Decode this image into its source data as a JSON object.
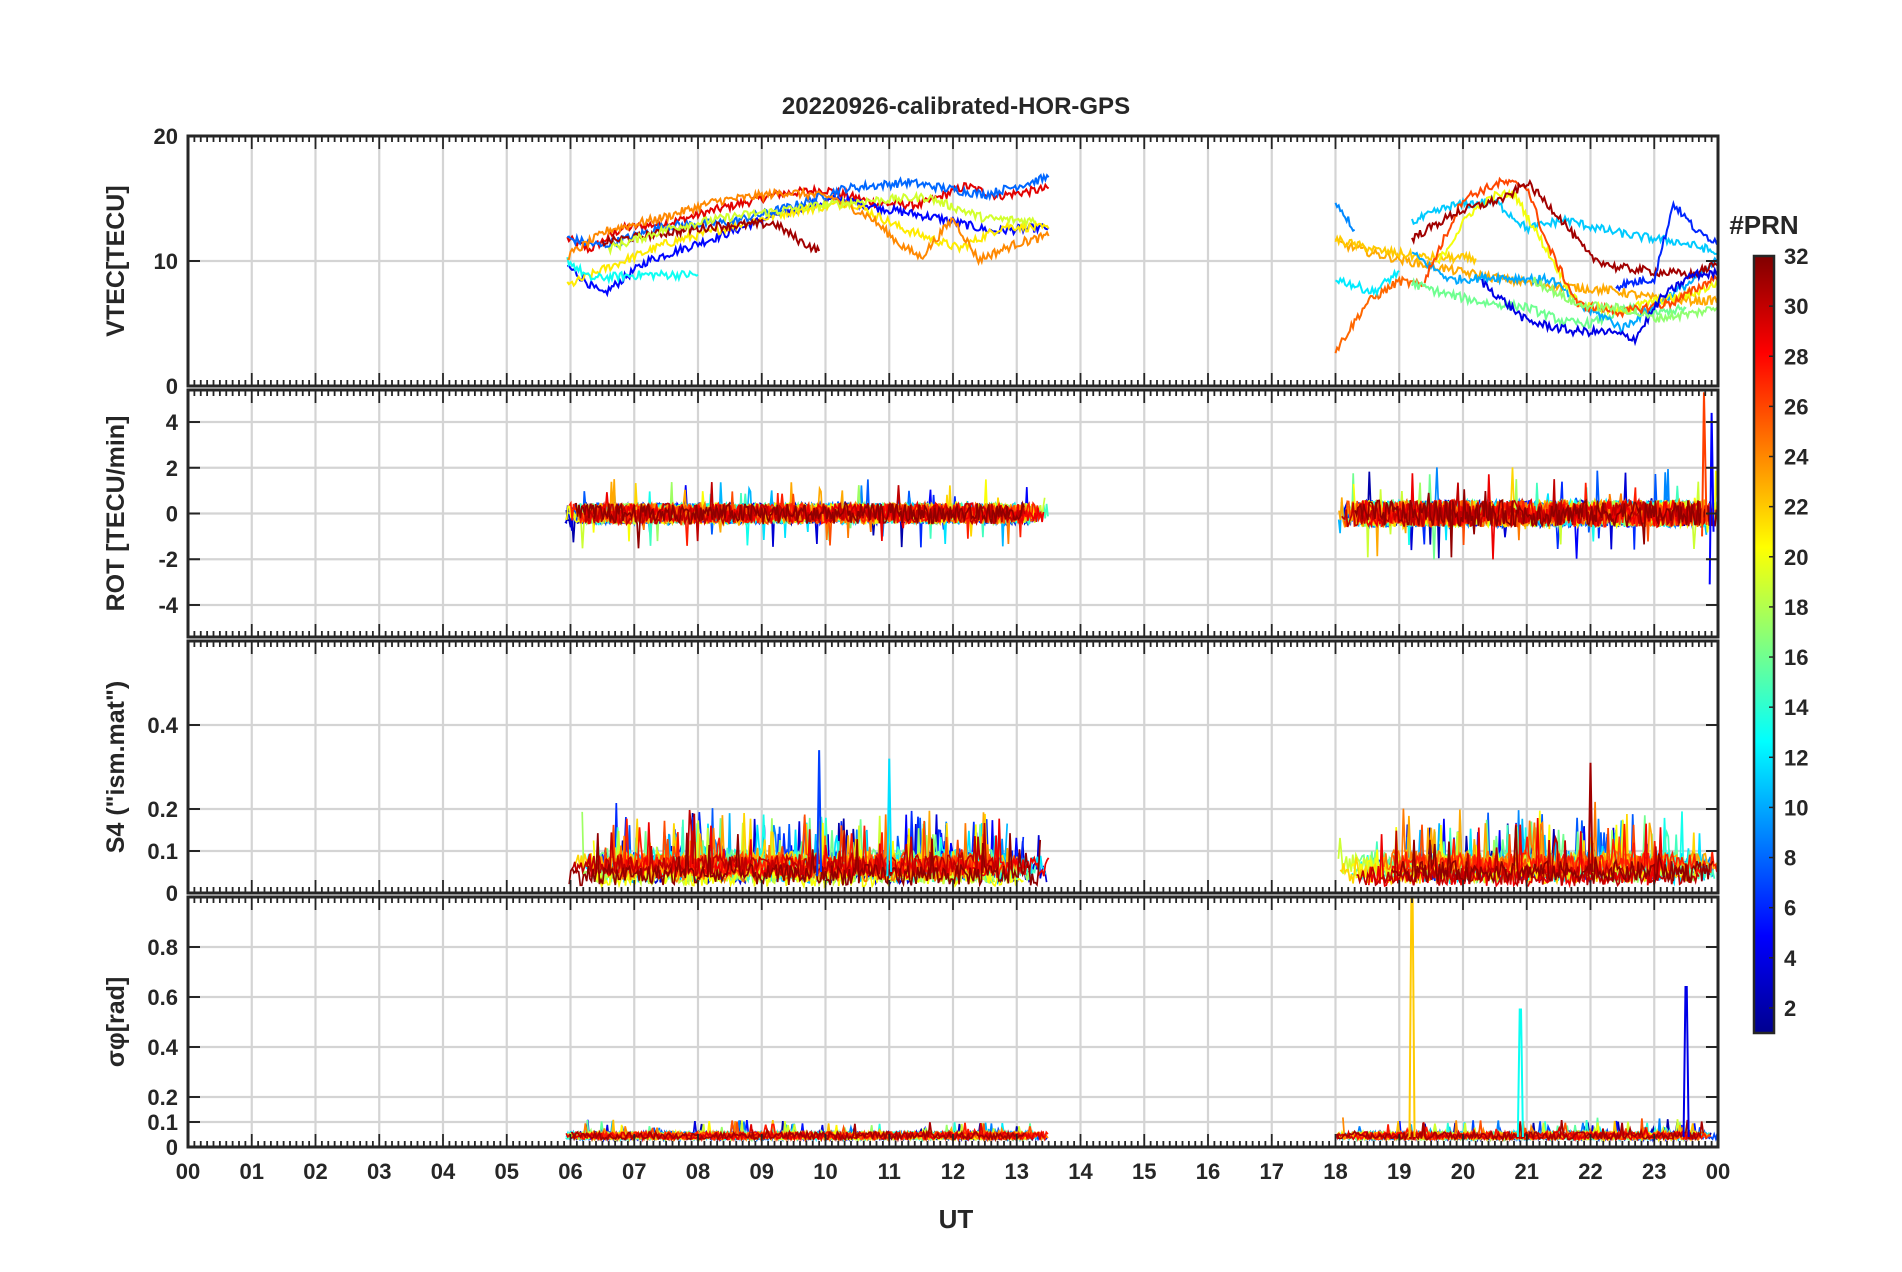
{
  "figure": {
    "title": "20220926-calibrated-HOR-GPS",
    "xlabel": "UT"
  },
  "colorbar": {
    "title": "#PRN",
    "ticks": [
      "2",
      "4",
      "6",
      "8",
      "10",
      "12",
      "14",
      "16",
      "18",
      "20",
      "22",
      "24",
      "26",
      "28",
      "30",
      "32"
    ],
    "range": [
      1,
      32
    ],
    "colormap": "jet",
    "colors": [
      "#00008f",
      "#0000ff",
      "#0080ff",
      "#00ffff",
      "#80ff80",
      "#ffff00",
      "#ff8000",
      "#ff0000",
      "#800000"
    ]
  },
  "chart_data": [
    {
      "type": "line",
      "panel": "VTEC",
      "ylabel": "VTEC[TECU]",
      "xlim": [
        0,
        24
      ],
      "ylim": [
        0,
        20
      ],
      "yticks": [
        0,
        10,
        20
      ],
      "ytick_labels": [
        "0",
        "10",
        "20"
      ],
      "xticks": [
        0,
        1,
        2,
        3,
        4,
        5,
        6,
        7,
        8,
        9,
        10,
        11,
        12,
        13,
        14,
        15,
        16,
        17,
        18,
        19,
        20,
        21,
        22,
        23,
        24
      ],
      "xtick_labels": [
        "00",
        "01",
        "02",
        "03",
        "04",
        "05",
        "06",
        "07",
        "08",
        "09",
        "10",
        "11",
        "12",
        "13",
        "14",
        "15",
        "16",
        "17",
        "18",
        "19",
        "20",
        "21",
        "22",
        "23",
        "00"
      ],
      "data_windows_ut": [
        [
          5.9,
          13.5
        ],
        [
          18.0,
          24.0
        ]
      ],
      "approx_range": [
        3,
        17
      ]
    },
    {
      "type": "line",
      "panel": "ROT",
      "ylabel": "ROT [TECU/min]",
      "xlim": [
        0,
        24
      ],
      "ylim": [
        -5.4,
        5.4
      ],
      "yticks": [
        -4,
        -2,
        0,
        2,
        4
      ],
      "ytick_labels": [
        "-4",
        "-2",
        "0",
        "2",
        "4"
      ],
      "data_windows_ut": [
        [
          5.9,
          13.5
        ],
        [
          18.0,
          24.0
        ]
      ],
      "approx_range": [
        -3.5,
        5.3
      ]
    },
    {
      "type": "line",
      "panel": "S4",
      "ylabel": "S4 (\"ism.mat\")",
      "xlim": [
        0,
        24
      ],
      "ylim": [
        0,
        0.6
      ],
      "yticks": [
        0,
        0.1,
        0.2,
        0.4
      ],
      "ytick_labels": [
        "0",
        "0.1",
        "0.2",
        "0.4"
      ],
      "data_windows_ut": [
        [
          5.9,
          13.5
        ],
        [
          18.0,
          24.0
        ]
      ],
      "peaks": [
        {
          "ut": 9.9,
          "value": 0.34
        },
        {
          "ut": 11.0,
          "value": 0.32
        },
        {
          "ut": 22.0,
          "value": 0.31
        }
      ]
    },
    {
      "type": "line",
      "panel": "sigma_phi",
      "ylabel": "σφ[rad]",
      "xlim": [
        0,
        24
      ],
      "ylim": [
        0,
        1.0
      ],
      "yticks": [
        0,
        0.1,
        0.2,
        0.4,
        0.6,
        0.8
      ],
      "ytick_labels": [
        "0",
        "0.1",
        "0.2",
        "0.4",
        "0.6",
        "0.8"
      ],
      "data_windows_ut": [
        [
          5.9,
          13.5
        ],
        [
          18.0,
          24.0
        ]
      ],
      "spikes": [
        {
          "ut": 19.2,
          "value": 1.0,
          "prn": 22
        },
        {
          "ut": 20.9,
          "value": 0.55,
          "prn": 13
        },
        {
          "ut": 23.5,
          "value": 0.64,
          "prn": 4
        }
      ]
    }
  ]
}
